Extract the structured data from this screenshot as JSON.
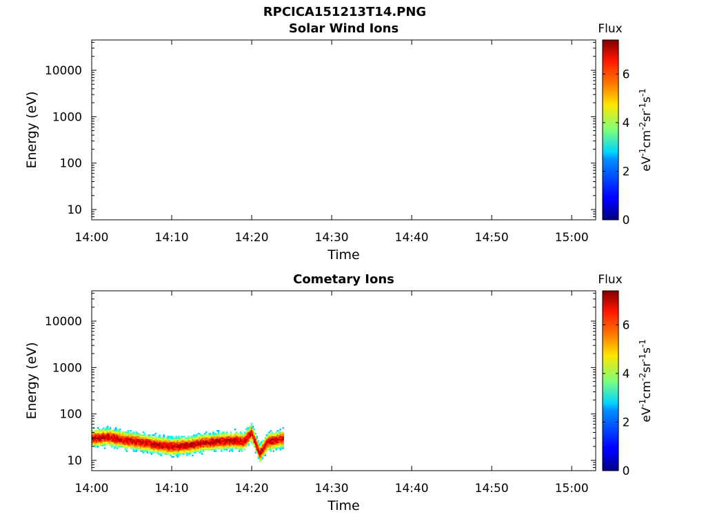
{
  "figure": {
    "title": "RPCICA151213T14.PNG"
  },
  "chart_data": [
    {
      "type": "heatmap",
      "title": "Solar Wind Ions",
      "xlabel": "Time",
      "ylabel": "Energy (eV)",
      "x_ticks": [
        "14:00",
        "14:10",
        "14:20",
        "14:30",
        "14:40",
        "14:50",
        "15:00"
      ],
      "xlim": [
        "14:00",
        "15:03"
      ],
      "y_scale": "log",
      "y_ticks": [
        10,
        100,
        1000,
        10000
      ],
      "y_tick_labels": [
        "10",
        "100",
        "1000",
        "10000"
      ],
      "ylim": [
        6,
        45000
      ],
      "colorbar": {
        "title": "Flux",
        "label": "eV-1cm-2sr-1s-1",
        "range": [
          0,
          7.4
        ],
        "ticks": [
          0,
          2,
          4,
          6
        ],
        "tick_labels": [
          "0",
          "2",
          "4",
          "6"
        ],
        "colormap": "jet"
      },
      "data": []
    },
    {
      "type": "heatmap",
      "title": "Cometary Ions",
      "xlabel": "Time",
      "ylabel": "Energy (eV)",
      "x_ticks": [
        "14:00",
        "14:10",
        "14:20",
        "14:30",
        "14:40",
        "14:50",
        "15:00"
      ],
      "xlim": [
        "14:00",
        "15:03"
      ],
      "y_scale": "log",
      "y_ticks": [
        10,
        100,
        1000,
        10000
      ],
      "y_tick_labels": [
        "10",
        "100",
        "1000",
        "10000"
      ],
      "ylim": [
        6,
        45000
      ],
      "colorbar": {
        "title": "Flux",
        "label": "eV-1cm-2sr-1s-1",
        "range": [
          0,
          7.4
        ],
        "ticks": [
          0,
          2,
          4,
          6
        ],
        "tick_labels": [
          "0",
          "2",
          "4",
          "6"
        ],
        "colormap": "jet"
      },
      "data": {
        "time_range": [
          "14:00",
          "14:24"
        ],
        "energy_range_eV": [
          7,
          80
        ],
        "peak_energy_eV": [
          [
            "14:00",
            30
          ],
          [
            "14:02",
            32
          ],
          [
            "14:04",
            28
          ],
          [
            "14:06",
            25
          ],
          [
            "14:08",
            22
          ],
          [
            "14:10",
            20
          ],
          [
            "14:12",
            21
          ],
          [
            "14:14",
            24
          ],
          [
            "14:16",
            26
          ],
          [
            "14:18",
            27
          ],
          [
            "14:19",
            25
          ],
          [
            "14:20",
            40
          ],
          [
            "14:21",
            14
          ],
          [
            "14:22",
            25
          ],
          [
            "14:24",
            30
          ]
        ],
        "peak_flux": 6.8
      }
    }
  ]
}
